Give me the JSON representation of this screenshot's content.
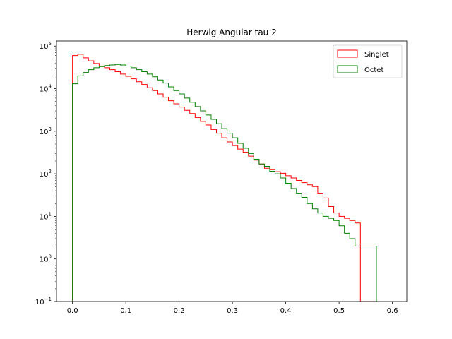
{
  "chart_data": {
    "type": "step-histogram",
    "title": "Herwig Angular tau 2",
    "xlabel": "",
    "ylabel": "",
    "xlim": [
      -0.03,
      0.627
    ],
    "ylim_log10": [
      -1,
      5.12
    ],
    "yscale": "log",
    "grid": false,
    "legend_position": "top-right",
    "xticks": [
      {
        "value": 0.0,
        "label": "0.0"
      },
      {
        "value": 0.1,
        "label": "0.1"
      },
      {
        "value": 0.2,
        "label": "0.2"
      },
      {
        "value": 0.3,
        "label": "0.3"
      },
      {
        "value": 0.4,
        "label": "0.4"
      },
      {
        "value": 0.5,
        "label": "0.5"
      },
      {
        "value": 0.6,
        "label": "0.6"
      }
    ],
    "yticks": [
      {
        "exp": -1,
        "base": "10",
        "power": "−1"
      },
      {
        "exp": 0,
        "base": "10",
        "power": "0"
      },
      {
        "exp": 1,
        "base": "10",
        "power": "1"
      },
      {
        "exp": 2,
        "base": "10",
        "power": "2"
      },
      {
        "exp": 3,
        "base": "10",
        "power": "3"
      },
      {
        "exp": 4,
        "base": "10",
        "power": "4"
      },
      {
        "exp": 5,
        "base": "10",
        "power": "5"
      }
    ],
    "series": [
      {
        "name": "Singlet",
        "color": "#ff0000",
        "bin_start": 0.0,
        "bin_width": 0.01,
        "values": [
          60000,
          64000,
          53000,
          45000,
          39000,
          34000,
          31000,
          28000,
          25000,
          22000,
          19500,
          17000,
          14500,
          12500,
          10500,
          9000,
          7500,
          6300,
          5200,
          4400,
          3700,
          3100,
          2600,
          2100,
          1700,
          1400,
          1100,
          900,
          700,
          560,
          460,
          380,
          320,
          260,
          210,
          170,
          135,
          125,
          112,
          103,
          90,
          80,
          70,
          62,
          55,
          50,
          35,
          27,
          17,
          12,
          10,
          9,
          8,
          7,
          0.08,
          0.08,
          0.08
        ]
      },
      {
        "name": "Octet",
        "color": "#008000",
        "bin_start": 0.0,
        "bin_width": 0.01,
        "values": [
          13000,
          20000,
          24000,
          28000,
          31000,
          33000,
          35000,
          36000,
          37000,
          36000,
          34000,
          31000,
          28000,
          25000,
          22000,
          19000,
          16000,
          13500,
          11000,
          9000,
          7500,
          6000,
          4800,
          3800,
          3000,
          2400,
          1900,
          1500,
          1150,
          900,
          700,
          520,
          400,
          300,
          220,
          170,
          150,
          115,
          100,
          80,
          60,
          45,
          35,
          28,
          20,
          15,
          12,
          10,
          9,
          8,
          6,
          4,
          3,
          2,
          2,
          2,
          2
        ]
      }
    ]
  }
}
